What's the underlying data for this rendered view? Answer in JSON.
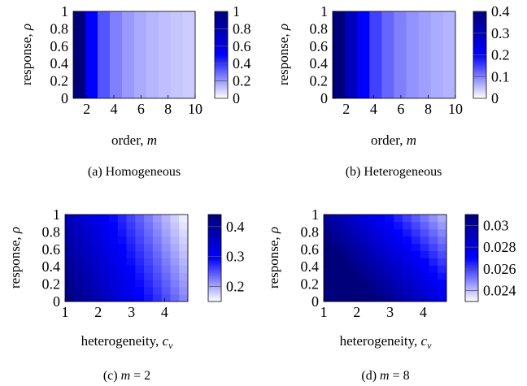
{
  "chart_data": [
    {
      "type": "heatmap",
      "caption": "(a) Homogeneous",
      "xlabel": "order, m",
      "ylabel": "response, ρ",
      "x": [
        1,
        2,
        3,
        4,
        5,
        6,
        7,
        8,
        9,
        10
      ],
      "xlim": [
        1,
        10
      ],
      "xticks": [
        2,
        4,
        6,
        8,
        10
      ],
      "ylim": [
        0,
        1
      ],
      "yticks": [
        0,
        0.2,
        0.4,
        0.6,
        0.8,
        1
      ],
      "column_values": [
        1.0,
        0.5,
        0.333,
        0.25,
        0.2,
        0.167,
        0.143,
        0.125,
        0.111,
        0.1
      ],
      "colorbar": {
        "min": 0,
        "max": 1,
        "ticks": [
          0,
          0.2,
          0.4,
          0.6,
          0.8,
          1
        ]
      }
    },
    {
      "type": "heatmap",
      "caption": "(b) Heterogeneous",
      "xlabel": "order, m",
      "ylabel": "response, ρ",
      "x": [
        1,
        2,
        3,
        4,
        5,
        6,
        7,
        8,
        9,
        10
      ],
      "xlim": [
        1,
        10
      ],
      "xticks": [
        2,
        4,
        6,
        8,
        10
      ],
      "ylim": [
        0,
        1
      ],
      "yticks": [
        0,
        0.2,
        0.4,
        0.6,
        0.8,
        1
      ],
      "column_values": [
        0.42,
        0.3,
        0.2,
        0.15,
        0.12,
        0.1,
        0.085,
        0.075,
        0.065,
        0.06
      ],
      "colorbar": {
        "min": 0,
        "max": 0.4,
        "ticks": [
          0,
          0.1,
          0.2,
          0.3,
          0.4
        ]
      }
    },
    {
      "type": "heatmap",
      "caption": "(c) m = 2",
      "xlabel": "heterogeneity, c_v",
      "ylabel": "response, ρ",
      "xlim": [
        1,
        4.7
      ],
      "xticks": [
        1,
        2,
        3,
        4
      ],
      "ylim": [
        0,
        1
      ],
      "yticks": [
        0,
        0.2,
        0.4,
        0.6,
        0.8,
        1
      ],
      "model": "value decreases with heterogeneity and increases toward low response",
      "value_range": [
        0.15,
        0.44
      ],
      "colorbar": {
        "min": 0.15,
        "max": 0.44,
        "ticks": [
          0.2,
          0.3,
          0.4
        ]
      }
    },
    {
      "type": "heatmap",
      "caption": "(d) m = 8",
      "xlabel": "heterogeneity, c_v",
      "ylabel": "response, ρ",
      "xlim": [
        1,
        4.7
      ],
      "xticks": [
        1,
        2,
        3,
        4
      ],
      "ylim": [
        0,
        1
      ],
      "yticks": [
        0,
        0.2,
        0.4,
        0.6,
        0.8,
        1
      ],
      "model": "near-uniform high values, fading along a diagonal band toward high heterogeneity",
      "value_range": [
        0.023,
        0.031
      ],
      "colorbar": {
        "min": 0.023,
        "max": 0.031,
        "ticks": [
          0.024,
          0.026,
          0.028,
          0.03
        ]
      }
    }
  ]
}
